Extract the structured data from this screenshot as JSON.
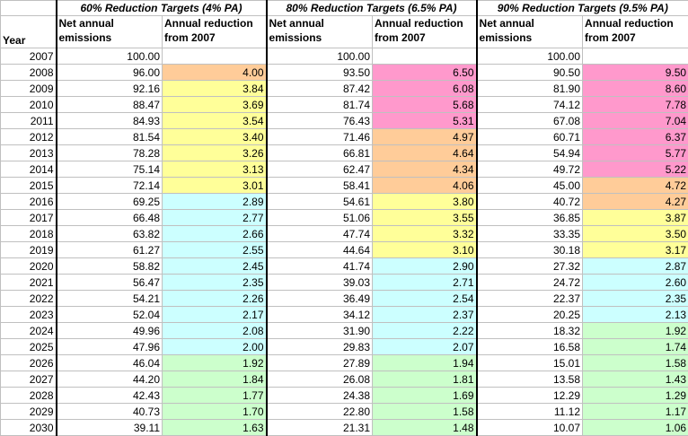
{
  "sheet": {
    "year_header": "Year",
    "groups": [
      {
        "title": "60% Reduction Targets (4% PA)",
        "col1": "Net annual emissions",
        "col2": "Annual reduction from 2007"
      },
      {
        "title": "80% Reduction Targets (6.5% PA)",
        "col1": "Net annual emissions",
        "col2": "Annual reduction from 2007"
      },
      {
        "title": "90% Reduction Targets (9.5% PA)",
        "col1": "Net annual emissions",
        "col2": "Annual reduction from 2007"
      }
    ],
    "color_legend": {
      "pink": "#ff99cc",
      "peach": "#ffcc99",
      "yellow": "#ffff99",
      "cyan": "#ccffff",
      "green": "#ccffcc"
    },
    "rows": [
      {
        "year": "2007",
        "a_net": "100.00",
        "a_red": "",
        "a_c": "",
        "b_net": "100.00",
        "b_red": "",
        "b_c": "",
        "c_net": "100.00",
        "c_red": "",
        "c_c": ""
      },
      {
        "year": "2008",
        "a_net": "96.00",
        "a_red": "4.00",
        "a_c": "peach",
        "b_net": "93.50",
        "b_red": "6.50",
        "b_c": "pink",
        "c_net": "90.50",
        "c_red": "9.50",
        "c_c": "pink"
      },
      {
        "year": "2009",
        "a_net": "92.16",
        "a_red": "3.84",
        "a_c": "yellow",
        "b_net": "87.42",
        "b_red": "6.08",
        "b_c": "pink",
        "c_net": "81.90",
        "c_red": "8.60",
        "c_c": "pink"
      },
      {
        "year": "2010",
        "a_net": "88.47",
        "a_red": "3.69",
        "a_c": "yellow",
        "b_net": "81.74",
        "b_red": "5.68",
        "b_c": "pink",
        "c_net": "74.12",
        "c_red": "7.78",
        "c_c": "pink"
      },
      {
        "year": "2011",
        "a_net": "84.93",
        "a_red": "3.54",
        "a_c": "yellow",
        "b_net": "76.43",
        "b_red": "5.31",
        "b_c": "pink",
        "c_net": "67.08",
        "c_red": "7.04",
        "c_c": "pink"
      },
      {
        "year": "2012",
        "a_net": "81.54",
        "a_red": "3.40",
        "a_c": "yellow",
        "b_net": "71.46",
        "b_red": "4.97",
        "b_c": "peach",
        "c_net": "60.71",
        "c_red": "6.37",
        "c_c": "pink"
      },
      {
        "year": "2013",
        "a_net": "78.28",
        "a_red": "3.26",
        "a_c": "yellow",
        "b_net": "66.81",
        "b_red": "4.64",
        "b_c": "peach",
        "c_net": "54.94",
        "c_red": "5.77",
        "c_c": "pink"
      },
      {
        "year": "2014",
        "a_net": "75.14",
        "a_red": "3.13",
        "a_c": "yellow",
        "b_net": "62.47",
        "b_red": "4.34",
        "b_c": "peach",
        "c_net": "49.72",
        "c_red": "5.22",
        "c_c": "pink"
      },
      {
        "year": "2015",
        "a_net": "72.14",
        "a_red": "3.01",
        "a_c": "yellow",
        "b_net": "58.41",
        "b_red": "4.06",
        "b_c": "peach",
        "c_net": "45.00",
        "c_red": "4.72",
        "c_c": "peach"
      },
      {
        "year": "2016",
        "a_net": "69.25",
        "a_red": "2.89",
        "a_c": "cyan",
        "b_net": "54.61",
        "b_red": "3.80",
        "b_c": "yellow",
        "c_net": "40.72",
        "c_red": "4.27",
        "c_c": "peach"
      },
      {
        "year": "2017",
        "a_net": "66.48",
        "a_red": "2.77",
        "a_c": "cyan",
        "b_net": "51.06",
        "b_red": "3.55",
        "b_c": "yellow",
        "c_net": "36.85",
        "c_red": "3.87",
        "c_c": "yellow"
      },
      {
        "year": "2018",
        "a_net": "63.82",
        "a_red": "2.66",
        "a_c": "cyan",
        "b_net": "47.74",
        "b_red": "3.32",
        "b_c": "yellow",
        "c_net": "33.35",
        "c_red": "3.50",
        "c_c": "yellow"
      },
      {
        "year": "2019",
        "a_net": "61.27",
        "a_red": "2.55",
        "a_c": "cyan",
        "b_net": "44.64",
        "b_red": "3.10",
        "b_c": "yellow",
        "c_net": "30.18",
        "c_red": "3.17",
        "c_c": "yellow"
      },
      {
        "year": "2020",
        "a_net": "58.82",
        "a_red": "2.45",
        "a_c": "cyan",
        "b_net": "41.74",
        "b_red": "2.90",
        "b_c": "cyan",
        "c_net": "27.32",
        "c_red": "2.87",
        "c_c": "cyan"
      },
      {
        "year": "2021",
        "a_net": "56.47",
        "a_red": "2.35",
        "a_c": "cyan",
        "b_net": "39.03",
        "b_red": "2.71",
        "b_c": "cyan",
        "c_net": "24.72",
        "c_red": "2.60",
        "c_c": "cyan"
      },
      {
        "year": "2022",
        "a_net": "54.21",
        "a_red": "2.26",
        "a_c": "cyan",
        "b_net": "36.49",
        "b_red": "2.54",
        "b_c": "cyan",
        "c_net": "22.37",
        "c_red": "2.35",
        "c_c": "cyan"
      },
      {
        "year": "2023",
        "a_net": "52.04",
        "a_red": "2.17",
        "a_c": "cyan",
        "b_net": "34.12",
        "b_red": "2.37",
        "b_c": "cyan",
        "c_net": "20.25",
        "c_red": "2.13",
        "c_c": "cyan"
      },
      {
        "year": "2024",
        "a_net": "49.96",
        "a_red": "2.08",
        "a_c": "cyan",
        "b_net": "31.90",
        "b_red": "2.22",
        "b_c": "cyan",
        "c_net": "18.32",
        "c_red": "1.92",
        "c_c": "green"
      },
      {
        "year": "2025",
        "a_net": "47.96",
        "a_red": "2.00",
        "a_c": "cyan",
        "b_net": "29.83",
        "b_red": "2.07",
        "b_c": "cyan",
        "c_net": "16.58",
        "c_red": "1.74",
        "c_c": "green"
      },
      {
        "year": "2026",
        "a_net": "46.04",
        "a_red": "1.92",
        "a_c": "green",
        "b_net": "27.89",
        "b_red": "1.94",
        "b_c": "green",
        "c_net": "15.01",
        "c_red": "1.58",
        "c_c": "green"
      },
      {
        "year": "2027",
        "a_net": "44.20",
        "a_red": "1.84",
        "a_c": "green",
        "b_net": "26.08",
        "b_red": "1.81",
        "b_c": "green",
        "c_net": "13.58",
        "c_red": "1.43",
        "c_c": "green"
      },
      {
        "year": "2028",
        "a_net": "42.43",
        "a_red": "1.77",
        "a_c": "green",
        "b_net": "24.38",
        "b_red": "1.69",
        "b_c": "green",
        "c_net": "12.29",
        "c_red": "1.29",
        "c_c": "green"
      },
      {
        "year": "2029",
        "a_net": "40.73",
        "a_red": "1.70",
        "a_c": "green",
        "b_net": "22.80",
        "b_red": "1.58",
        "b_c": "green",
        "c_net": "11.12",
        "c_red": "1.17",
        "c_c": "green"
      },
      {
        "year": "2030",
        "a_net": "39.11",
        "a_red": "1.63",
        "a_c": "green",
        "b_net": "21.31",
        "b_red": "1.48",
        "b_c": "green",
        "c_net": "10.07",
        "c_red": "1.06",
        "c_c": "green"
      }
    ]
  }
}
